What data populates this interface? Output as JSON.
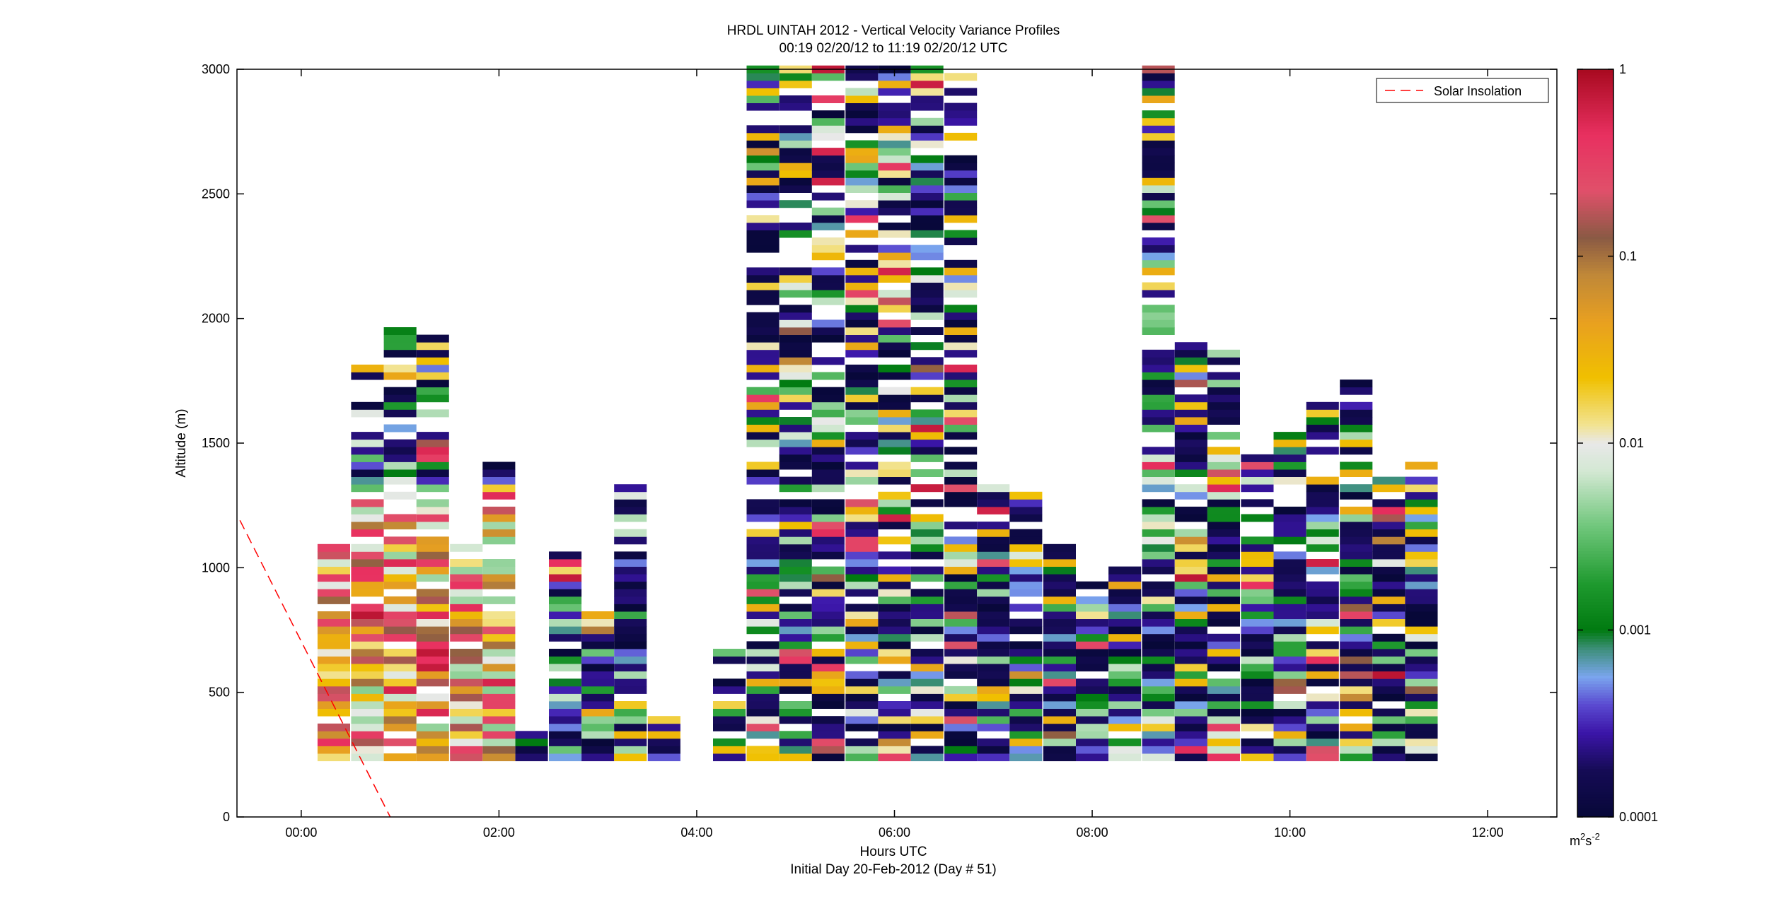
{
  "chart_data": {
    "type": "heatmap",
    "title_line1": "HRDL UINTAH 2012 - Vertical Velocity Variance Profiles",
    "title_line2": "00:19 02/20/12 to 11:19 02/20/12  UTC",
    "xlabel": "Hours UTC",
    "xlabel_line2": "Initial Day 20-Feb-2012 (Day # 51)",
    "ylabel": "Altitude (m)",
    "xlim_hours": [
      -0.65,
      12.7
    ],
    "ylim": [
      0,
      3000
    ],
    "x_ticks": [
      {
        "hour": 0,
        "label": "00:00"
      },
      {
        "hour": 2,
        "label": "02:00"
      },
      {
        "hour": 4,
        "label": "04:00"
      },
      {
        "hour": 6,
        "label": "06:00"
      },
      {
        "hour": 8,
        "label": "08:00"
      },
      {
        "hour": 10,
        "label": "10:00"
      },
      {
        "hour": 12,
        "label": "12:00"
      }
    ],
    "y_ticks": [
      0,
      500,
      1000,
      1500,
      2000,
      2500,
      3000
    ],
    "legend": {
      "entries": [
        "Solar Insolation"
      ],
      "placement": "top-right",
      "line_color": "#ff0000",
      "line_style": "dashed"
    },
    "solar_insolation_line": {
      "x_hours": [
        -0.62,
        0.9
      ],
      "y": [
        1190,
        0
      ]
    },
    "colorbar": {
      "scale": "log",
      "min": 0.0001,
      "max": 1,
      "tick_labels": [
        "1",
        "0.1",
        "0.01",
        "0.001",
        "0.0001"
      ],
      "tick_values": [
        1,
        0.1,
        0.01,
        0.001,
        0.0001
      ],
      "unit_base": "m",
      "unit_base_sup": "2",
      "unit_s": "s",
      "unit_s_sup": "-2"
    },
    "grid": false,
    "profiles": {
      "row_height_m": 30,
      "altitude_min_m": 225,
      "column_width_hours": 0.33,
      "columns": [
        {
          "t": 0.33,
          "top": 1090
        },
        {
          "t": 0.67,
          "top": 1800
        },
        {
          "t": 1.0,
          "top": 1960
        },
        {
          "t": 1.33,
          "top": 1930
        },
        {
          "t": 1.67,
          "top": 1090
        },
        {
          "t": 2.0,
          "top": 1400
        },
        {
          "t": 2.33,
          "top": 350
        },
        {
          "t": 2.67,
          "top": 1060
        },
        {
          "t": 3.0,
          "top": 800
        },
        {
          "t": 3.33,
          "top": 1340
        },
        {
          "t": 3.67,
          "top": 400
        },
        {
          "t": 4.33,
          "top": 650
        },
        {
          "t": 4.67,
          "top": 3000
        },
        {
          "t": 5.0,
          "top": 3000
        },
        {
          "t": 5.33,
          "top": 3000
        },
        {
          "t": 5.67,
          "top": 3000
        },
        {
          "t": 6.0,
          "top": 3000
        },
        {
          "t": 6.33,
          "top": 3000
        },
        {
          "t": 6.67,
          "top": 3000
        },
        {
          "t": 7.0,
          "top": 1330
        },
        {
          "t": 7.33,
          "top": 1290
        },
        {
          "t": 7.67,
          "top": 1070
        },
        {
          "t": 8.0,
          "top": 920
        },
        {
          "t": 8.33,
          "top": 1000
        },
        {
          "t": 8.67,
          "top": 3000
        },
        {
          "t": 9.0,
          "top": 1900
        },
        {
          "t": 9.33,
          "top": 1850
        },
        {
          "t": 9.67,
          "top": 1440
        },
        {
          "t": 10.0,
          "top": 1540
        },
        {
          "t": 10.33,
          "top": 1640
        },
        {
          "t": 10.67,
          "top": 1750
        },
        {
          "t": 11.0,
          "top": 1350
        },
        {
          "t": 11.33,
          "top": 1400
        }
      ]
    }
  }
}
